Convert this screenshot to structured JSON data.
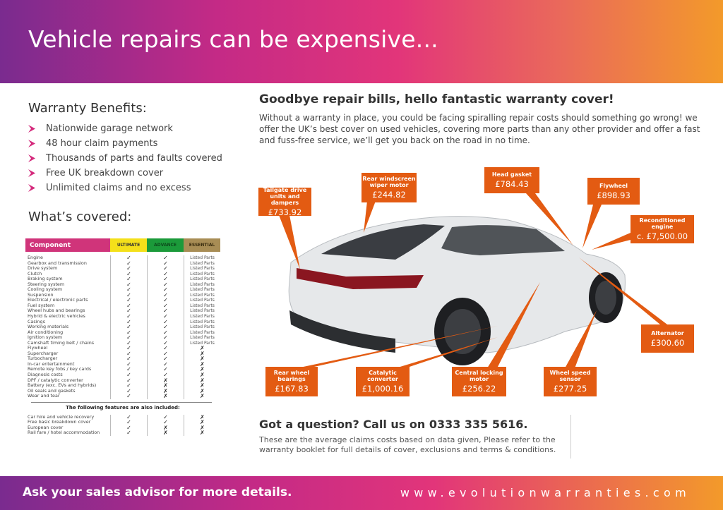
{
  "header": {
    "title": "Vehicle repairs can be expensive..."
  },
  "benefits": {
    "title": "Warranty Benefits:",
    "items": [
      "Nationwide garage network",
      "48 hour claim payments",
      "Thousands of parts and faults covered",
      "Free UK breakdown cover",
      "Unlimited claims and no excess"
    ]
  },
  "covered": {
    "title": "What’s covered:",
    "columns": [
      "Component",
      "ULTIMATE",
      "ADVANCE",
      "ESSENTIAL"
    ],
    "column_colors": {
      "component": "#d0347a",
      "ultimate": "#f4e01a",
      "advance": "#1b9a3a",
      "essential": "#a88d55"
    },
    "rows": [
      [
        "Engine",
        "✓",
        "✓",
        "Listed Parts"
      ],
      [
        "Gearbox and transmission",
        "✓",
        "✓",
        "Listed Parts"
      ],
      [
        "Drive system",
        "✓",
        "✓",
        "Listed Parts"
      ],
      [
        "Clutch",
        "✓",
        "✓",
        "Listed Parts"
      ],
      [
        "Braking system",
        "✓",
        "✓",
        "Listed Parts"
      ],
      [
        "Steering system",
        "✓",
        "✓",
        "Listed Parts"
      ],
      [
        "Cooling system",
        "✓",
        "✓",
        "Listed Parts"
      ],
      [
        "Suspension",
        "✓",
        "✓",
        "Listed Parts"
      ],
      [
        "Electrical / electronic parts",
        "✓",
        "✓",
        "Listed Parts"
      ],
      [
        "Fuel system",
        "✓",
        "✓",
        "Listed Parts"
      ],
      [
        "Wheel hubs and bearings",
        "✓",
        "✓",
        "Listed Parts"
      ],
      [
        "Hybrid & electric vehicles",
        "✓",
        "✓",
        "Listed Parts"
      ],
      [
        "Casings",
        "✓",
        "✓",
        "Listed Parts"
      ],
      [
        "Working materials",
        "✓",
        "✓",
        "Listed Parts"
      ],
      [
        "Air conditioning",
        "✓",
        "✓",
        "Listed Parts"
      ],
      [
        "Ignition system",
        "✓",
        "✓",
        "Listed Parts"
      ],
      [
        "Camshaft timing belt / chains",
        "✓",
        "✓",
        "Listed Parts"
      ],
      [
        "Flywheel",
        "✓",
        "✓",
        "✗"
      ],
      [
        "Supercharger",
        "✓",
        "✓",
        "✗"
      ],
      [
        "Turbocharger",
        "✓",
        "✓",
        "✗"
      ],
      [
        "In-car entertainment",
        "✓",
        "✓",
        "✗"
      ],
      [
        "Remote key fobs / key cards",
        "✓",
        "✓",
        "✗"
      ],
      [
        "Diagnosis costs",
        "✓",
        "✓",
        "✗"
      ],
      [
        "DPF / catalytic converter",
        "✓",
        "✗",
        "✗"
      ],
      [
        "Battery (exc. EVs and hybrids)",
        "✓",
        "✗",
        "✗"
      ],
      [
        "Oil seals and gaskets",
        "✓",
        "✗",
        "✗"
      ],
      [
        "Wear and tear",
        "✓",
        "✗",
        "✗"
      ]
    ],
    "also_title": "The following features are also included:",
    "also_rows": [
      [
        "Car hire and vehicle recovery",
        "✓",
        "✓",
        "✗"
      ],
      [
        "Free basic breakdown cover",
        "✓",
        "✓",
        "✗"
      ],
      [
        "European cover",
        "✓",
        "✗",
        "✗"
      ],
      [
        "Rail fare / hotel accommodation",
        "✓",
        "✗",
        "✗"
      ]
    ]
  },
  "intro": {
    "title": "Goodbye repair bills, hello fantastic warranty cover!",
    "text": "Without a warranty in place, you could be facing spiralling repair costs should something go wrong! we offer the UK’s best cover on used vehicles, covering more parts than any other provider and offer a fast and fuss-free service, we’ll get you back on the road in no time."
  },
  "callout_color": "#e35b12",
  "callouts": [
    {
      "name": "Tailgate drive units and dampers",
      "price": "£733.92"
    },
    {
      "name": "Rear windscreen wiper motor",
      "price": "£244.82"
    },
    {
      "name": "Head gasket",
      "price": "£784.43"
    },
    {
      "name": "Flywheel",
      "price": "£898.93"
    },
    {
      "name": "Reconditioned engine",
      "price": "c. £7,500.00"
    },
    {
      "name": "Alternator",
      "price": "£300.60"
    },
    {
      "name": "Rear wheel bearings",
      "price": "£167.83"
    },
    {
      "name": "Catalytic converter",
      "price": "£1,000.16"
    },
    {
      "name": "Central locking motor",
      "price": "£256.22"
    },
    {
      "name": "Wheel speed sensor",
      "price": "£277.25"
    }
  ],
  "contact": {
    "title": "Got a question? Call us on 0333 335 5616.",
    "text": "These are the average claims costs based on data given, Please refer to the warranty booklet for full details of cover, exclusions and terms & conditions."
  },
  "footer": {
    "left": "Ask your sales advisor for more details.",
    "right": "www.evolutionwarranties.com"
  }
}
